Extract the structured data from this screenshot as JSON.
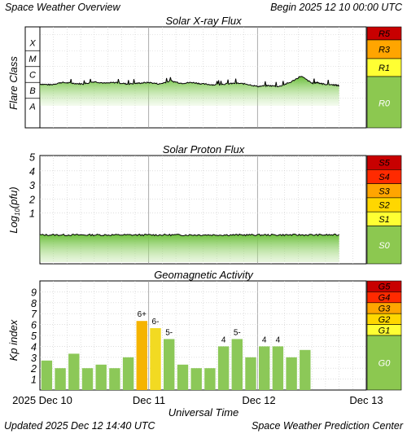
{
  "header": {
    "title": "Space Weather Overview",
    "begin": "Begin 2025 12 10 00:00 UTC"
  },
  "footer": {
    "updated": "Updated 2025 Dec 12 14:40 UTC",
    "source": "Space Weather Prediction Center"
  },
  "colors": {
    "bar_green": "#8cc858",
    "bar_yellow": "#f2da22",
    "bar_orange": "#f5b400",
    "scale_green": "#8cc850",
    "s1_yellow": "#ffff33",
    "s2_yellow": "#ffd700",
    "s3_orange": "#ffa500",
    "s4_red": "#ff2a00",
    "s5_darkred": "#c80000",
    "line": "#000000",
    "grid": "#cccccc"
  },
  "chart_data": [
    {
      "type": "line",
      "title": "Solar X-ray Flux",
      "ylabel": "Flare Class",
      "y_classes": [
        "X",
        "M",
        "C",
        "B",
        "A"
      ],
      "scale_labels": [
        "R5",
        "R3",
        "R1",
        "R0"
      ],
      "x_range_days": [
        0,
        3
      ],
      "x": [
        0,
        0.1,
        0.2,
        0.3,
        0.4,
        0.5,
        0.6,
        0.7,
        0.8,
        0.9,
        1.0,
        1.1,
        1.2,
        1.3,
        1.4,
        1.5,
        1.6,
        1.7,
        1.8,
        1.9,
        2.0,
        2.1,
        2.2,
        2.3,
        2.4,
        2.5,
        2.55,
        2.6,
        2.7,
        2.75
      ],
      "y": [
        -6.6,
        -6.65,
        -6.5,
        -6.55,
        -6.6,
        -6.45,
        -6.55,
        -6.5,
        -6.6,
        -6.55,
        -6.5,
        -6.6,
        -6.4,
        -6.55,
        -6.5,
        -6.6,
        -6.65,
        -6.6,
        -6.55,
        -6.6,
        -6.75,
        -6.7,
        -6.75,
        -6.5,
        -6.1,
        -6.55,
        -6.5,
        -6.6,
        -6.65,
        -6.7
      ]
    },
    {
      "type": "line",
      "title": "Solar Proton Flux",
      "ylabel": "Log10(pfu)",
      "ylabel_main": "Log",
      "ylabel_sub": "10",
      "ylabel_rest": "(pfu)",
      "y_ticks": [
        "1",
        "2",
        "3",
        "4",
        "5"
      ],
      "scale_labels": [
        "S5",
        "S4",
        "S3",
        "S2",
        "S1",
        "S0"
      ],
      "x_range_days": [
        0,
        3
      ],
      "x": [
        0,
        0.5,
        1.0,
        1.5,
        2.0,
        2.5,
        2.75
      ],
      "y": [
        -0.55,
        -0.55,
        -0.55,
        -0.55,
        -0.55,
        -0.55,
        -0.55
      ]
    },
    {
      "type": "bar",
      "title": "Geomagnetic Activity",
      "ylabel": "Kp index",
      "y_ticks": [
        "1",
        "2",
        "3",
        "4",
        "5",
        "6",
        "7",
        "8",
        "9"
      ],
      "scale_labels": [
        "G5",
        "G4",
        "G3",
        "G2",
        "G1",
        "G0"
      ],
      "ylim": [
        0,
        10
      ],
      "values": [
        2.7,
        2.0,
        3.33,
        2.0,
        2.33,
        2.0,
        3.0,
        6.33,
        5.67,
        4.67,
        2.33,
        2.0,
        2.0,
        4.0,
        4.67,
        3.0,
        4.0,
        4.0,
        3.0,
        3.67
      ],
      "bar_labels": [
        "",
        "",
        "",
        "",
        "",
        "",
        "",
        "6+",
        "6-",
        "5-",
        "",
        "",
        "",
        "4",
        "5-",
        "",
        "4",
        "4",
        "",
        ""
      ],
      "x_tick_labels": [
        "2025 Dec 10",
        "Dec 11",
        "Dec 12",
        "Dec 13"
      ],
      "xlabel": "Universal Time"
    }
  ]
}
